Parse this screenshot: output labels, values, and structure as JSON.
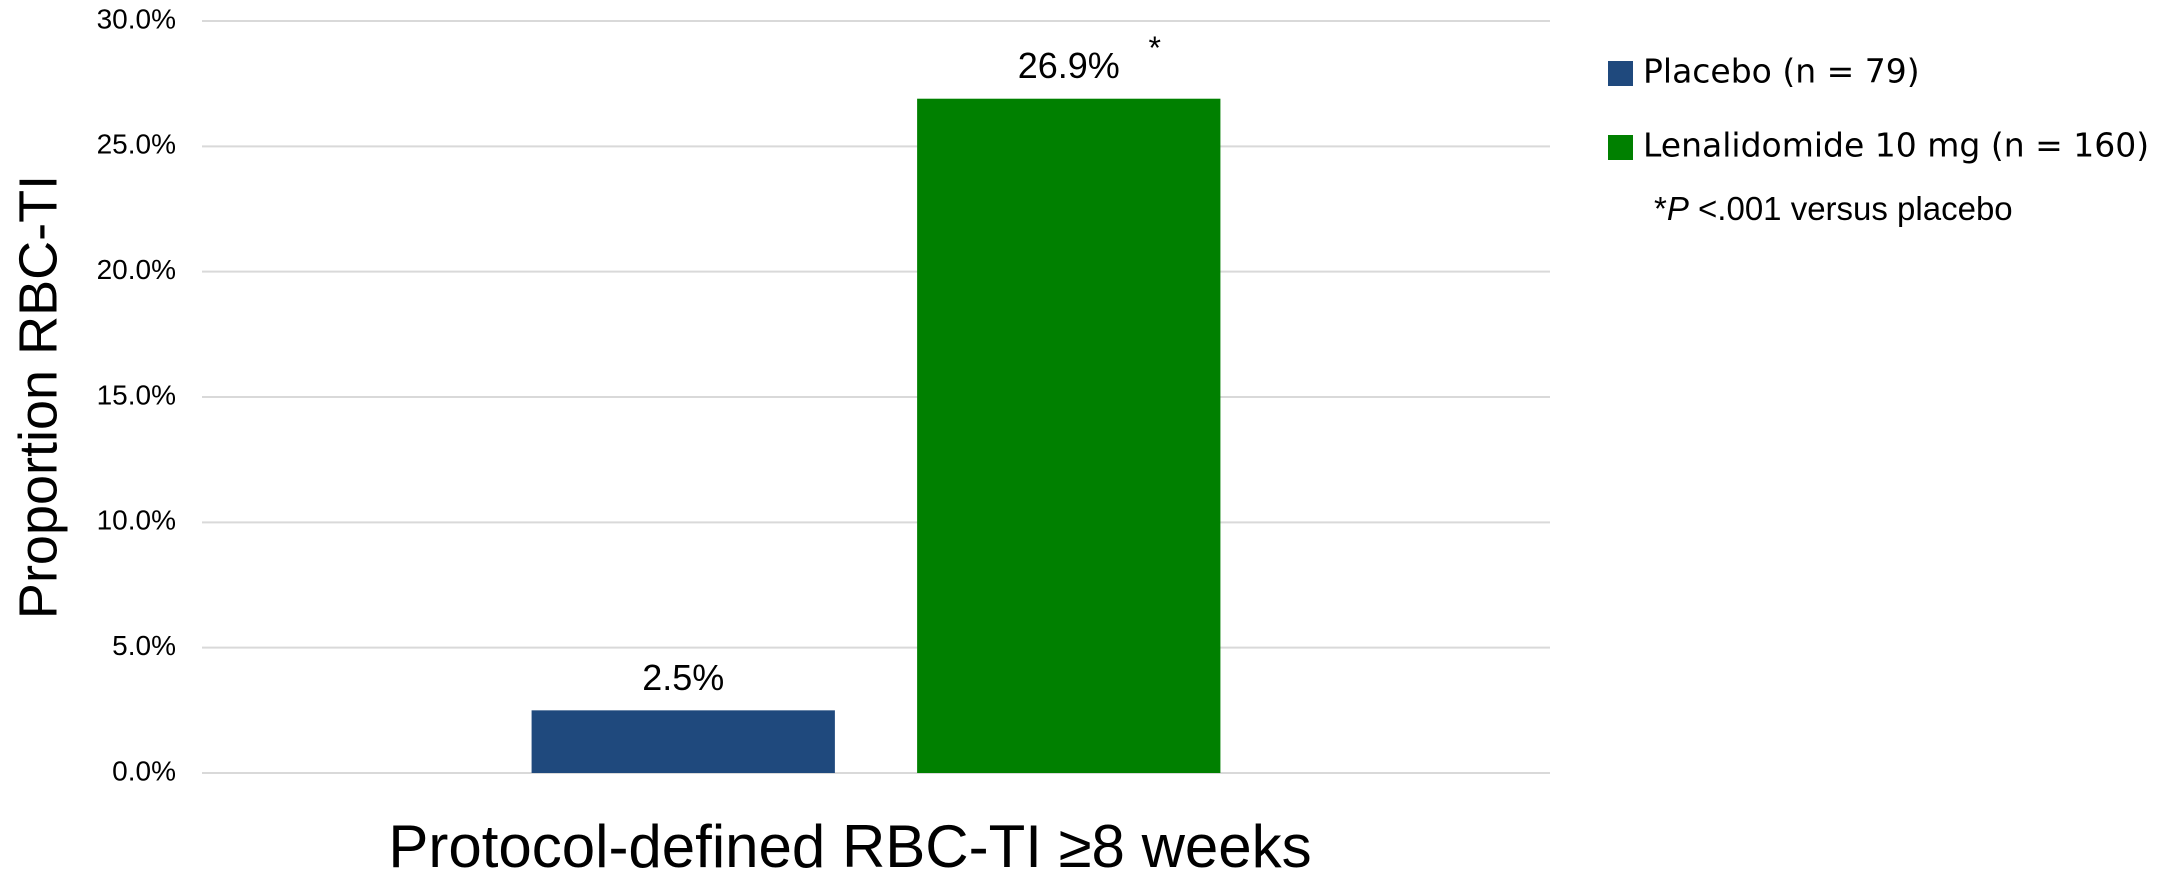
{
  "chart_data": {
    "type": "bar",
    "x_label": "Protocol-defined RBC-TI ≥8 weeks",
    "y_label": "Proportion RBC-TI",
    "categories": [
      "Protocol-defined RBC-TI ≥8 weeks"
    ],
    "series": [
      {
        "name": "Placebo (n = 79)",
        "color": "#1f497d",
        "values": [
          2.5
        ],
        "value_labels": [
          "2.5%"
        ]
      },
      {
        "name": "Lenalidomide 10 mg (n = 160)",
        "color": "#008000",
        "values": [
          26.9
        ],
        "value_labels": [
          "26.9%"
        ],
        "annotation": "*"
      }
    ],
    "ylim": [
      0,
      30
    ],
    "yticks": [
      {
        "value": 0,
        "label": "0.0%"
      },
      {
        "value": 5,
        "label": "5.0%"
      },
      {
        "value": 10,
        "label": "10.0%"
      },
      {
        "value": 15,
        "label": "15.0%"
      },
      {
        "value": 20,
        "label": "20.0%"
      },
      {
        "value": 25,
        "label": "25.0%"
      },
      {
        "value": 30,
        "label": "30.0%"
      }
    ],
    "grid": true,
    "legend": "right",
    "footnote": {
      "marker": "*",
      "italic": "P",
      "text": " <.001 versus placebo"
    }
  }
}
